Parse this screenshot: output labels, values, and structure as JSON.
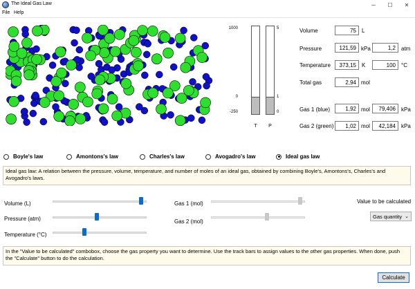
{
  "window": {
    "title": "The Ideal Gas Law"
  },
  "menu": {
    "file": "File",
    "help": "Help"
  },
  "gauges": {
    "t_max": "1000",
    "t_zero": "0",
    "t_min": "-250",
    "p_max": "5",
    "p_one": "1",
    "p_zero": "0",
    "t_letter": "T",
    "p_letter": "P",
    "t_level": 0.2,
    "p_level": 0.2
  },
  "props": {
    "volume_label": "Volume",
    "volume_value": "75",
    "volume_unit": "L",
    "pressure_label": "Pressure",
    "pressure_kpa": "121,59",
    "pressure_kpa_unit": "kPa",
    "pressure_atm": "1,2",
    "pressure_atm_unit": "atm",
    "temperature_label": "Temperature",
    "temperature_k": "373,15",
    "temperature_k_unit": "K",
    "temperature_c": "100",
    "temperature_c_unit": "°C",
    "total_label": "Total gas",
    "total_value": "2,94",
    "total_unit": "mol",
    "gas1_label": "Gas 1 (blue)",
    "gas1_mol": "1,92",
    "gas1_mol_unit": "mol",
    "gas1_kpa": "79,406",
    "gas1_kpa_unit": "kPa",
    "gas2_label": "Gas 2 (green)",
    "gas2_mol": "1,02",
    "gas2_mol_unit": "mol",
    "gas2_kpa": "42,184",
    "gas2_kpa_unit": "kPa"
  },
  "laws": [
    {
      "label": "Boyle's law",
      "selected": false
    },
    {
      "label": "Amontons's law",
      "selected": false
    },
    {
      "label": "Charles's law",
      "selected": false
    },
    {
      "label": "Avogadro's law",
      "selected": false
    },
    {
      "label": "Ideal gas law",
      "selected": true
    }
  ],
  "description": "Ideal gas law: A relation between the pressure, volume, temperature, and number of moles of an ideal gas, obtained by combining Boyle's, Amontons's, Charles's and Avogadro's laws.",
  "sliders": {
    "volume_label": "Volume (L)",
    "volume_level": 0.96,
    "pressure_label": "Pressure (atm)",
    "pressure_level": 0.47,
    "temperature_label": "Temperature (°C)",
    "temperature_level": 0.33,
    "gas1_label": "Gas 1 (mol)",
    "gas1_level": 0.97,
    "gas2_label": "Gas 2 (mol)",
    "gas2_level": 0.6
  },
  "calc": {
    "label": "Value to be calculated",
    "selected": "Gas quantity"
  },
  "hint": "In the \"Value to be calculated\" combobox, choose the gas property you want to determine. Use the track bars to assign values to the other gas properties. When done, push the \"Calculate\" button to do the calculation.",
  "buttons": {
    "calculate": "Calculate"
  },
  "colors": {
    "gas1": "#1010c8",
    "gas2": "#2ee02e",
    "accent": "#0a6cd0"
  }
}
